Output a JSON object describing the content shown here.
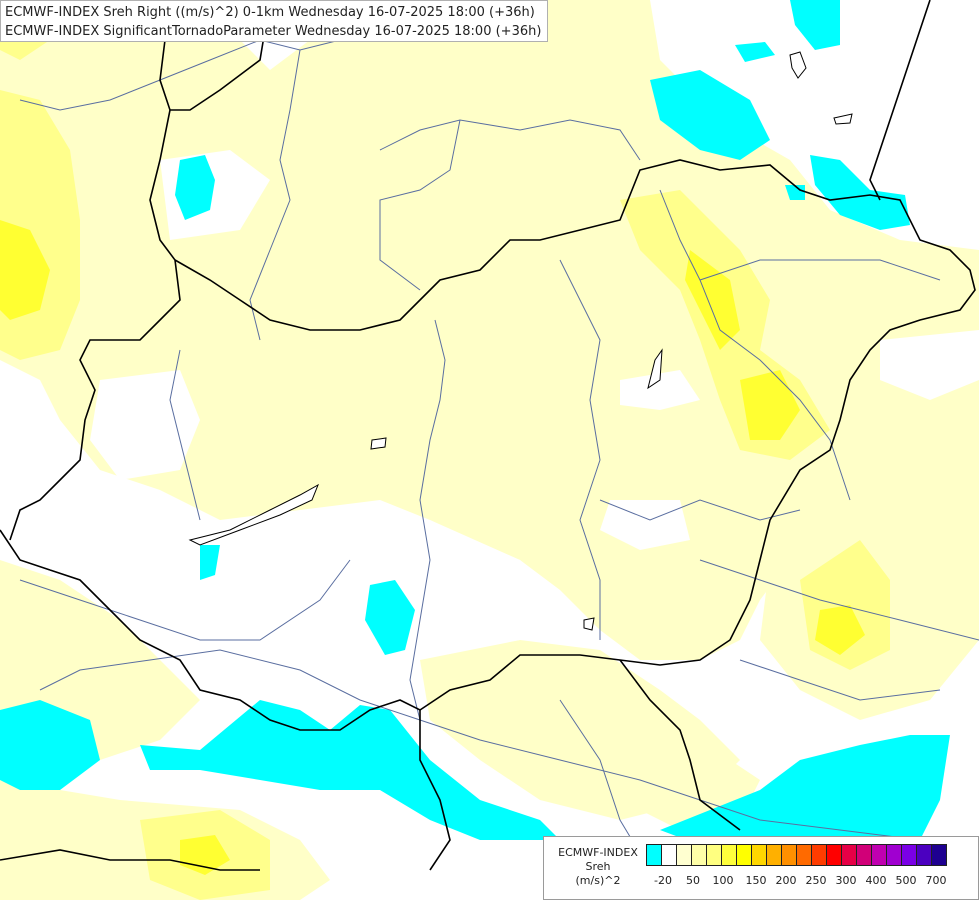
{
  "header": {
    "line1": "ECMWF-INDEX Sreh Right ((m/s)^2) 0-1km Wednesday 16-07-2025 18:00 (+36h)",
    "line2": "ECMWF-INDEX SignificantTornadoParameter Wednesday 16-07-2025 18:00 (+36h)"
  },
  "legend": {
    "title_model": "ECMWF-INDEX",
    "title_param": "Sreh",
    "title_unit": "(m/s)^2",
    "colors": [
      "#00ffff",
      "#ffffff",
      "#ffffd0",
      "#ffffa8",
      "#ffff80",
      "#ffff3c",
      "#ffff00",
      "#ffd700",
      "#ffb000",
      "#ff9000",
      "#ff6a00",
      "#ff3c00",
      "#ff0000",
      "#e60046",
      "#d10078",
      "#c000b0",
      "#a000d0",
      "#7a00e6",
      "#4b00c0",
      "#1e0090"
    ],
    "ticks": [
      "-20",
      "50",
      "100",
      "150",
      "200",
      "250",
      "300",
      "400",
      "500",
      "700"
    ]
  },
  "map_colors": {
    "background": "#ffffff",
    "light_yellow": "#ffffc8",
    "medium_yellow": "#ffff8c",
    "strong_yellow": "#ffff00",
    "cyan": "#00ffff",
    "border": "#000000",
    "river": "#5a6ea0"
  }
}
